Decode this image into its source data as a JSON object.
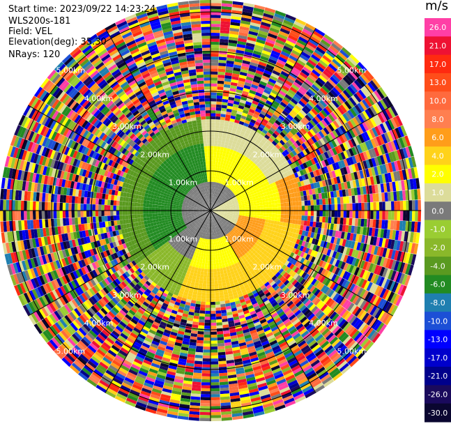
{
  "header": {
    "start_time": "Start time: 2023/09/22 14:23:24",
    "instrument": "WLS200s-181",
    "field": "Field: VEL",
    "elevation": "Elevation(deg): 35.30",
    "nrays": "NRays: 120"
  },
  "colorbar": {
    "unit": "m/s",
    "levels": [
      {
        "label": "26.0",
        "color": "#ff3fa6"
      },
      {
        "label": "21.0",
        "color": "#ee1133"
      },
      {
        "label": "17.0",
        "color": "#ff2a10"
      },
      {
        "label": "13.0",
        "color": "#ff4d1a"
      },
      {
        "label": "10.0",
        "color": "#ff6a3d"
      },
      {
        "label": "8.0",
        "color": "#ff7f50"
      },
      {
        "label": "6.0",
        "color": "#ff9d1a"
      },
      {
        "label": "4.0",
        "color": "#ffd21a"
      },
      {
        "label": "2.0",
        "color": "#ffff00"
      },
      {
        "label": "1.0",
        "color": "#dcdc9a"
      },
      {
        "label": "0.0",
        "color": "#7a7a7a"
      },
      {
        "label": "-1.0",
        "color": "#9acd32"
      },
      {
        "label": "-2.0",
        "color": "#8ab82a"
      },
      {
        "label": "-4.0",
        "color": "#5a9a20"
      },
      {
        "label": "-6.0",
        "color": "#228b22"
      },
      {
        "label": "-8.0",
        "color": "#1f7fb0"
      },
      {
        "label": "-10.0",
        "color": "#1c4fd6"
      },
      {
        "label": "-13.0",
        "color": "#0000ff"
      },
      {
        "label": "-17.0",
        "color": "#0000cc"
      },
      {
        "label": "-21.0",
        "color": "#00008b"
      },
      {
        "label": "-26.0",
        "color": "#1a0a5c"
      },
      {
        "label": "-30.0",
        "color": "#0a0630"
      }
    ]
  },
  "chart_data": {
    "type": "heatmap",
    "projection": "polar PPI",
    "field": "VEL",
    "units": "m/s",
    "nrays": 120,
    "range_rings_km": [
      1.0,
      2.0,
      3.0,
      4.0,
      5.0
    ],
    "range_ring_labels": [
      "1.00km",
      "2.00km",
      "3.00km",
      "4.00km",
      "5.00km"
    ],
    "max_range_km": 5.3,
    "coherent_region_max_km": 2.3,
    "velocity_pattern": {
      "description_regions": [
        {
          "sector": "west / north-west",
          "range_km": [
            0.3,
            2.1
          ],
          "value_ms": -6.0
        },
        {
          "sector": "north-east / east",
          "range_km": [
            0.8,
            2.2
          ],
          "value_ms": 2.0
        },
        {
          "sector": "south-east",
          "range_km": [
            0.8,
            2.0
          ],
          "value_ms": 6.0
        },
        {
          "sector": "near center",
          "range_km": [
            0.0,
            0.8
          ],
          "value_ms": 0.0
        }
      ],
      "far_range": "random noise across full color scale"
    },
    "colorbar_range": [
      -30.0,
      26.0
    ]
  }
}
